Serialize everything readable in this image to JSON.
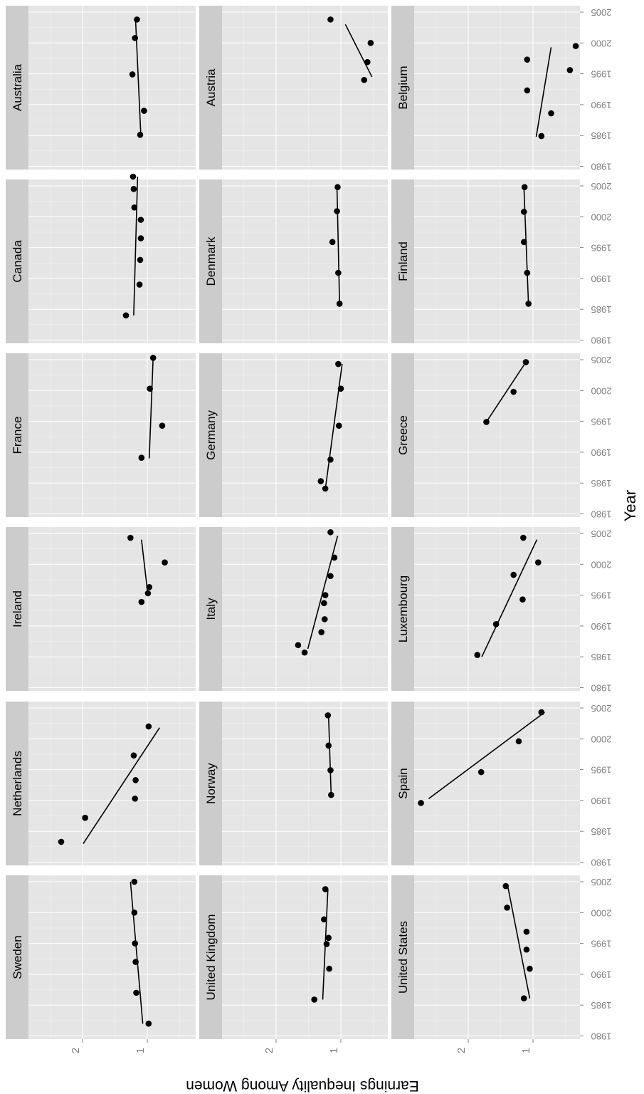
{
  "chart_data": {
    "type": "scatter",
    "xlabel": "Year",
    "ylabel": "Earnings Inequality Among Women",
    "x_ticks": [
      1980,
      1985,
      1990,
      1995,
      2000,
      2005
    ],
    "y_ticks": [
      1,
      2
    ],
    "xlim": [
      1980,
      2006
    ],
    "ylim": [
      0.45,
      3.05
    ],
    "ylim_note": "y axis is reversed (1 nearer the right edge)",
    "panels": [
      {
        "name": "Australia",
        "points": [
          [
            1985.1,
            1.11
          ],
          [
            1989.0,
            1.05
          ],
          [
            1994.9,
            1.23
          ],
          [
            2000.8,
            1.19
          ],
          [
            2003.8,
            1.16
          ]
        ],
        "fit": [
          [
            1985,
            1.1
          ],
          [
            2003.5,
            1.18
          ]
        ]
      },
      {
        "name": "Austria",
        "points": [
          [
            1994.0,
            0.64
          ],
          [
            1996.9,
            0.59
          ],
          [
            2000.0,
            0.54
          ],
          [
            2003.8,
            1.16
          ]
        ],
        "fit": [
          [
            1994.5,
            0.52
          ],
          [
            2003.0,
            0.93
          ]
        ]
      },
      {
        "name": "Belgium",
        "points": [
          [
            1984.9,
            0.87
          ],
          [
            1988.6,
            0.72
          ],
          [
            1992.3,
            1.09
          ],
          [
            1995.6,
            0.43
          ],
          [
            1997.3,
            1.09
          ],
          [
            1999.5,
            0.34
          ]
        ],
        "fit": [
          [
            1984.8,
            0.95
          ],
          [
            1999.3,
            0.72
          ]
        ]
      },
      {
        "name": "Canada",
        "points": [
          [
            1984.0,
            1.33
          ],
          [
            1989.0,
            1.12
          ],
          [
            1993.0,
            1.11
          ],
          [
            1996.5,
            1.1
          ],
          [
            1999.5,
            1.1
          ],
          [
            2001.5,
            1.2
          ],
          [
            2004.5,
            1.21
          ],
          [
            2006.5,
            1.22
          ]
        ],
        "fit": [
          [
            1984.0,
            1.21
          ],
          [
            2006.5,
            1.15
          ]
        ]
      },
      {
        "name": "Denmark",
        "points": [
          [
            1985.9,
            1.02
          ],
          [
            1990.9,
            1.04
          ],
          [
            1995.9,
            1.13
          ],
          [
            2000.9,
            1.06
          ],
          [
            2004.8,
            1.05
          ]
        ],
        "fit": [
          [
            1985.9,
            1.02
          ],
          [
            2004.8,
            1.06
          ]
        ]
      },
      {
        "name": "Finland",
        "points": [
          [
            1985.9,
            1.07
          ],
          [
            1990.9,
            1.09
          ],
          [
            1995.9,
            1.14
          ],
          [
            2000.8,
            1.14
          ],
          [
            2004.8,
            1.13
          ]
        ],
        "fit": [
          [
            1985.9,
            1.07
          ],
          [
            2004.8,
            1.14
          ]
        ]
      },
      {
        "name": "France",
        "points": [
          [
            1989.1,
            1.09
          ],
          [
            1994.3,
            0.77
          ],
          [
            2000.3,
            0.96
          ],
          [
            2005.3,
            0.91
          ]
        ],
        "fit": [
          [
            1989.0,
            0.97
          ],
          [
            2005.3,
            0.91
          ]
        ]
      },
      {
        "name": "Germany",
        "points": [
          [
            1984.1,
            1.24
          ],
          [
            1985.3,
            1.31
          ],
          [
            1988.8,
            1.16
          ],
          [
            1994.3,
            1.03
          ],
          [
            2000.3,
            1.0
          ],
          [
            2004.3,
            1.04
          ]
        ],
        "fit": [
          [
            1984.0,
            1.24
          ],
          [
            2004.3,
            0.98
          ]
        ]
      },
      {
        "name": "Greece",
        "points": [
          [
            1994.9,
            1.72
          ],
          [
            1999.8,
            1.3
          ],
          [
            2004.6,
            1.11
          ]
        ],
        "fit": [
          [
            1994.9,
            1.72
          ],
          [
            2004.6,
            1.11
          ]
        ]
      },
      {
        "name": "Ireland",
        "points": [
          [
            1993.9,
            1.09
          ],
          [
            1995.3,
            0.99
          ],
          [
            1996.3,
            0.97
          ],
          [
            2000.3,
            0.73
          ],
          [
            2004.3,
            1.26
          ]
        ],
        "fit": [
          [
            1995.0,
            0.99
          ],
          [
            2004.0,
            1.09
          ]
        ]
      },
      {
        "name": "Italy",
        "points": [
          [
            1985.7,
            1.56
          ],
          [
            1986.9,
            1.66
          ],
          [
            1989.0,
            1.3
          ],
          [
            1991.1,
            1.25
          ],
          [
            1993.7,
            1.26
          ],
          [
            1995.0,
            1.24
          ],
          [
            1998.1,
            1.16
          ],
          [
            2001.1,
            1.1
          ],
          [
            2005.2,
            1.16
          ]
        ],
        "fit": [
          [
            1986.3,
            1.51
          ],
          [
            2004.6,
            1.05
          ]
        ]
      },
      {
        "name": "Luxembourg",
        "points": [
          [
            1985.3,
            1.86
          ],
          [
            1990.3,
            1.57
          ],
          [
            1994.3,
            1.16
          ],
          [
            1998.3,
            1.3
          ],
          [
            2000.3,
            0.92
          ],
          [
            2004.3,
            1.15
          ]
        ],
        "fit": [
          [
            1985.0,
            1.79
          ],
          [
            2004.0,
            0.94
          ]
        ]
      },
      {
        "name": "Netherlands",
        "points": [
          [
            1983.3,
            2.33
          ],
          [
            1987.2,
            1.96
          ],
          [
            1990.3,
            1.19
          ],
          [
            1993.3,
            1.18
          ],
          [
            1997.3,
            1.21
          ],
          [
            2002.0,
            0.98
          ]
        ],
        "fit": [
          [
            1983.0,
            1.99
          ],
          [
            2001.8,
            0.81
          ]
        ]
      },
      {
        "name": "Norway",
        "points": [
          [
            1990.9,
            1.15
          ],
          [
            1994.9,
            1.16
          ],
          [
            1998.9,
            1.19
          ],
          [
            2003.8,
            1.2
          ]
        ],
        "fit": [
          [
            1990.9,
            1.15
          ],
          [
            2003.8,
            1.19
          ]
        ]
      },
      {
        "name": "Spain",
        "points": [
          [
            1989.6,
            2.73
          ],
          [
            1994.6,
            1.8
          ],
          [
            1999.6,
            1.22
          ],
          [
            2004.3,
            0.87
          ]
        ],
        "fit": [
          [
            1990.3,
            2.61
          ],
          [
            2004.3,
            0.82
          ]
        ]
      },
      {
        "name": "Sweden",
        "points": [
          [
            1982.0,
            0.98
          ],
          [
            1987.0,
            1.17
          ],
          [
            1992.0,
            1.18
          ],
          [
            1995.0,
            1.19
          ],
          [
            2000.0,
            1.2
          ],
          [
            2005.0,
            1.2
          ]
        ],
        "fit": [
          [
            1982.0,
            1.07
          ],
          [
            2005.0,
            1.26
          ]
        ]
      },
      {
        "name": "United Kingdom",
        "points": [
          [
            1985.9,
            1.41
          ],
          [
            1990.9,
            1.18
          ],
          [
            1994.9,
            1.22
          ],
          [
            1995.9,
            1.19
          ],
          [
            1998.9,
            1.26
          ],
          [
            2003.8,
            1.24
          ]
        ],
        "fit": [
          [
            1985.9,
            1.28
          ],
          [
            2003.8,
            1.2
          ]
        ]
      },
      {
        "name": "United States",
        "points": [
          [
            1986.1,
            1.14
          ],
          [
            1990.9,
            1.05
          ],
          [
            1994.0,
            1.1
          ],
          [
            1996.9,
            1.1
          ],
          [
            2000.8,
            1.4
          ],
          [
            2004.3,
            1.42
          ]
        ],
        "fit": [
          [
            1986.1,
            1.05
          ],
          [
            2004.3,
            1.39
          ]
        ]
      }
    ]
  }
}
